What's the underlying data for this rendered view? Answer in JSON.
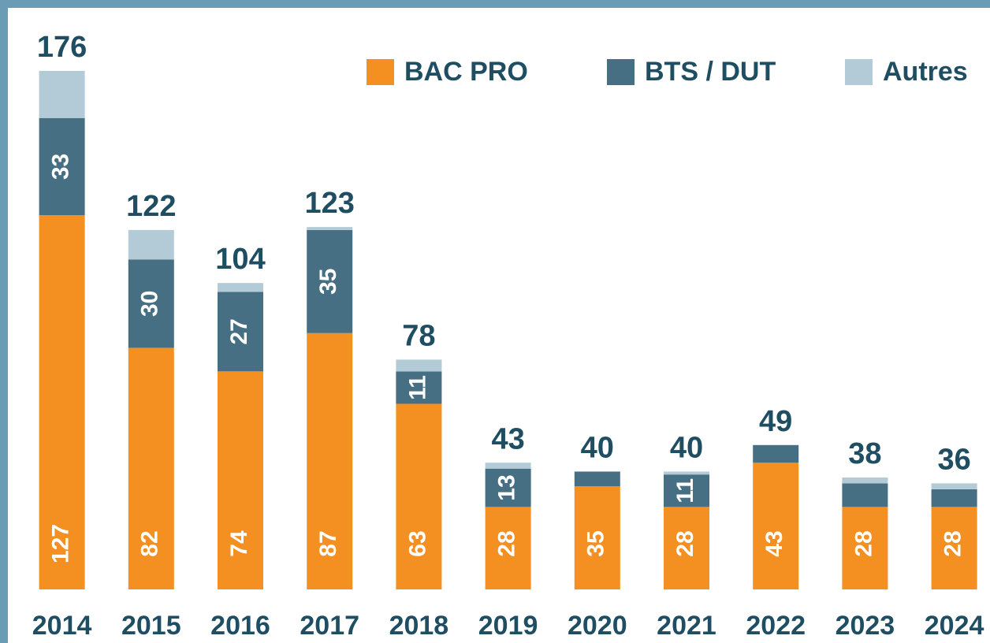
{
  "chart_data": {
    "type": "stacked_bar",
    "categories": [
      "2014",
      "2015",
      "2016",
      "2017",
      "2018",
      "2019",
      "2020",
      "2021",
      "2022",
      "2023",
      "2024"
    ],
    "series": [
      {
        "name": "BAC PRO",
        "color": "#f39021",
        "labels": true,
        "values": [
          127,
          82,
          74,
          87,
          63,
          28,
          35,
          28,
          43,
          28,
          28
        ]
      },
      {
        "name": "BTS / DUT",
        "color": "#466f84",
        "labels": true,
        "values": [
          33,
          30,
          27,
          35,
          11,
          13,
          5,
          11,
          6,
          8,
          6
        ]
      },
      {
        "name": "Autres",
        "color": "#b3cbd6",
        "labels": false,
        "values": [
          16,
          10,
          3,
          1,
          4,
          2,
          0,
          1,
          0,
          2,
          2
        ]
      }
    ],
    "totals": [
      176,
      122,
      104,
      123,
      78,
      43,
      40,
      40,
      49,
      38,
      36
    ],
    "ylim": [
      0,
      180
    ],
    "legend": "top-right"
  }
}
